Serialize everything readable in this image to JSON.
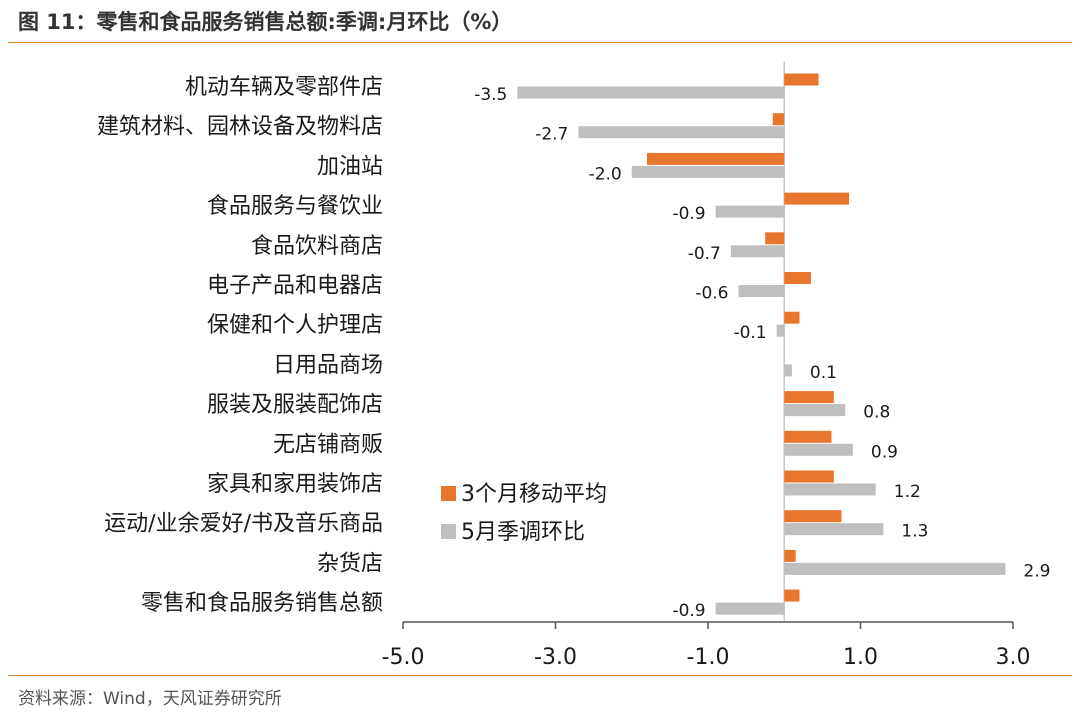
{
  "header": {
    "title": "图 11：零售和食品服务销售总额:季调:月环比（%）"
  },
  "footer": {
    "source": "资料来源：Wind，天风证券研究所"
  },
  "chart_data": {
    "type": "bar",
    "orientation": "horizontal",
    "categories": [
      "机动车辆及零部件店",
      "建筑材料、园林设备及物料店",
      "加油站",
      "食品服务与餐饮业",
      "食品饮料商店",
      "电子产品和电器店",
      "保健和个人护理店",
      "日用品商场",
      "服装及服装配饰店",
      "无店铺商贩",
      "家具和家用装饰店",
      "运动/业余爱好/书及音乐商品",
      "杂货店",
      "零售和食品服务销售总额"
    ],
    "series": [
      {
        "name": "3个月移动平均",
        "color": "#e8762d",
        "values": [
          0.45,
          -0.15,
          -1.8,
          0.85,
          -0.25,
          0.35,
          0.2,
          0.0,
          0.65,
          0.62,
          0.65,
          0.75,
          0.15,
          0.2
        ]
      },
      {
        "name": "5月季调环比",
        "color": "#bfbfbf",
        "values": [
          -3.5,
          -2.7,
          -2.0,
          -0.9,
          -0.7,
          -0.6,
          -0.1,
          0.1,
          0.8,
          0.9,
          1.2,
          1.3,
          2.9,
          -0.9
        ],
        "labels": [
          "-3.5",
          "-2.7",
          "-2.0",
          "-0.9",
          "-0.7",
          "-0.6",
          "-0.1",
          "0.1",
          "0.8",
          "0.9",
          "1.2",
          "1.3",
          "2.9",
          "-0.9"
        ]
      }
    ],
    "xlim": [
      -5.0,
      3.0
    ],
    "xticks": [
      -5.0,
      -3.0,
      -1.0,
      1.0,
      3.0
    ],
    "xtick_labels": [
      "-5.0",
      "-3.0",
      "-1.0",
      "1.0",
      "3.0"
    ],
    "legend_position": "lower-center",
    "grid": false
  }
}
